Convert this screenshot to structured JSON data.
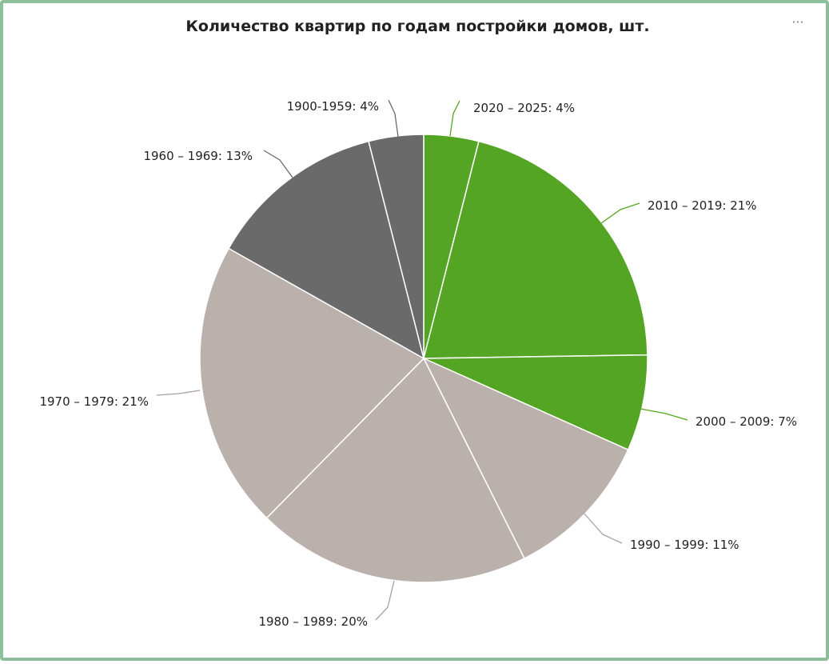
{
  "widget": {
    "title": "Количество квартир по годам постройки домов, шт.",
    "menu_label": "···"
  },
  "chart_data": {
    "type": "pie",
    "title": "Количество квартир по годам постройки домов, шт.",
    "slices": [
      {
        "label": "2020 – 2025: 4%",
        "category": "2020 – 2025",
        "value": 4,
        "color": "#54a523",
        "line_color": "#54a523"
      },
      {
        "label": "2010 – 2019: 21%",
        "category": "2010 – 2019",
        "value": 21,
        "color": "#54a523",
        "line_color": "#54a523"
      },
      {
        "label": "2000 – 2009: 7%",
        "category": "2000 – 2009",
        "value": 7,
        "color": "#54a523",
        "line_color": "#54a523"
      },
      {
        "label": "1990 – 1999: 11%",
        "category": "1990 – 1999",
        "value": 11,
        "color": "#bab1ad",
        "line_color": "#a8a09c"
      },
      {
        "label": "1980 – 1989: 20%",
        "category": "1980 – 1989",
        "value": 20,
        "color": "#bab1ad",
        "line_color": "#a8a09c"
      },
      {
        "label": "1970 – 1979: 21%",
        "category": "1970 – 1979",
        "value": 21,
        "color": "#bab1ad",
        "line_color": "#a8a09c"
      },
      {
        "label": "1960 – 1969: 13%",
        "category": "1960 – 1969",
        "value": 13,
        "color": "#6a6a6a",
        "line_color": "#6a6a6a"
      },
      {
        "label": "1900-1959: 4%",
        "category": "1900-1959",
        "value": 4,
        "color": "#6a6a6a",
        "line_color": "#6a6a6a"
      }
    ],
    "legend": "none"
  }
}
